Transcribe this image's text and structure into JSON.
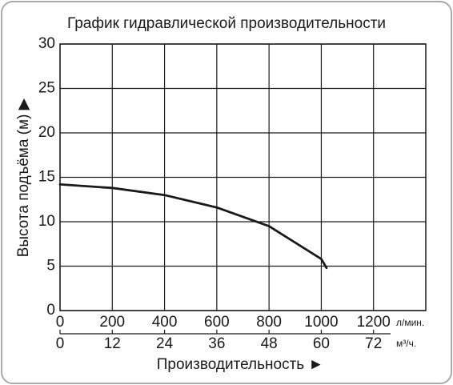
{
  "chart_data": {
    "type": "line",
    "title": "График гидравлической производительности",
    "ylabel": "Высота подъёма (м) ▶",
    "xlabel": "Производительность ►",
    "x_unit": "л/мин.",
    "x2_unit": "м³/ч.",
    "x": [
      0,
      200,
      400,
      600,
      800,
      1000,
      1020
    ],
    "series": [
      {
        "color": "#1a1a1a",
        "values": [
          14.2,
          13.8,
          13.0,
          11.6,
          9.5,
          5.8,
          4.8
        ]
      }
    ],
    "xlim": [
      0,
      1400
    ],
    "xticks": [
      0,
      200,
      400,
      600,
      800,
      1000,
      1200
    ],
    "x2lim": [
      0,
      84
    ],
    "x2ticks": [
      0,
      12,
      24,
      36,
      48,
      60,
      72
    ],
    "ylim": [
      0,
      30
    ],
    "yticks": [
      0,
      5,
      10,
      15,
      20,
      25,
      30
    ],
    "grid": true
  }
}
